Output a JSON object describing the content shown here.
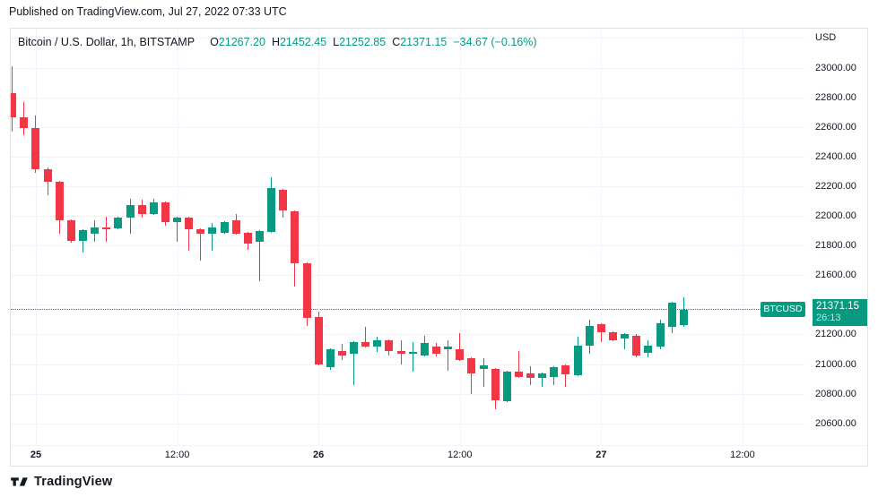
{
  "header": {
    "published": "Published on TradingView.com, Jul 27, 2022 07:33 UTC"
  },
  "legend": {
    "title": "Bitcoin / U.S. Dollar, 1h, BITSTAMP",
    "o_label": "O",
    "o": "21267.20",
    "h_label": "H",
    "h": "21452.45",
    "l_label": "L",
    "l": "21252.85",
    "c_label": "C",
    "c": "21371.15",
    "change": "−34.67 (−0.16%)"
  },
  "price_axis": {
    "currency": "USD",
    "grid_top_price": 23200,
    "labels": [
      {
        "text": "23000.00",
        "price": 23000
      },
      {
        "text": "22800.00",
        "price": 22800
      },
      {
        "text": "22600.00",
        "price": 22600
      },
      {
        "text": "22400.00",
        "price": 22400
      },
      {
        "text": "22200.00",
        "price": 22200
      },
      {
        "text": "22000.00",
        "price": 22000
      },
      {
        "text": "21800.00",
        "price": 21800
      },
      {
        "text": "21600.00",
        "price": 21600
      },
      {
        "text": "21400.00",
        "price": 21400
      },
      {
        "text": "21200.00",
        "price": 21200
      },
      {
        "text": "21000.00",
        "price": 21000
      },
      {
        "text": "20800.00",
        "price": 20800
      },
      {
        "text": "20600.00",
        "price": 20600
      }
    ]
  },
  "time_axis": {
    "ticks": [
      {
        "label": "25",
        "hour_index": 2,
        "bold": true
      },
      {
        "label": "12:00",
        "hour_index": 14,
        "bold": false
      },
      {
        "label": "26",
        "hour_index": 26,
        "bold": true
      },
      {
        "label": "12:00",
        "hour_index": 38,
        "bold": false
      },
      {
        "label": "27",
        "hour_index": 50,
        "bold": true
      },
      {
        "label": "12:00",
        "hour_index": 62,
        "bold": false
      }
    ]
  },
  "price_line": {
    "symbol": "BTCUSD",
    "price": "21371.15",
    "countdown": "26:13",
    "value": 21371.15
  },
  "footer": {
    "brand": "TradingView"
  },
  "colors": {
    "up": "#089981",
    "down": "#F23645",
    "text": "#131722",
    "grid": "#F1F3FA",
    "border": "#E0E3EB",
    "badge": "#089981"
  },
  "chart_data": {
    "type": "candlestick",
    "title": "Bitcoin / U.S. Dollar, 1h, BITSTAMP",
    "symbol": "BTCUSD",
    "exchange": "BITSTAMP",
    "interval": "1h",
    "timezone": "UTC",
    "start_time": "2022-07-24 22:00",
    "ylabel": "USD",
    "ylim": [
      20450,
      23270
    ],
    "grid": true,
    "last_bar": {
      "o": 21267.2,
      "h": 21452.45,
      "l": 21252.85,
      "c": 21371.15
    },
    "candles_format": [
      "open",
      "high",
      "low",
      "close"
    ],
    "candles": [
      [
        22830,
        23010,
        22570,
        22667
      ],
      [
        22667,
        22770,
        22545,
        22594
      ],
      [
        22594,
        22680,
        22291,
        22315
      ],
      [
        22315,
        22330,
        22140,
        22230
      ],
      [
        22230,
        22240,
        21880,
        21970
      ],
      [
        21970,
        21980,
        21820,
        21836
      ],
      [
        21836,
        21915,
        21758,
        21909
      ],
      [
        21880,
        21970,
        21830,
        21925
      ],
      [
        21925,
        22000,
        21830,
        21918
      ],
      [
        21918,
        21994,
        21910,
        21988
      ],
      [
        21988,
        22120,
        21880,
        22073
      ],
      [
        22073,
        22110,
        21988,
        22018
      ],
      [
        22018,
        22120,
        22010,
        22091
      ],
      [
        22091,
        22097,
        21939,
        21958
      ],
      [
        21958,
        21994,
        21830,
        21988
      ],
      [
        21988,
        21994,
        21770,
        21915
      ],
      [
        21915,
        21921,
        21703,
        21885
      ],
      [
        21885,
        21952,
        21770,
        21927
      ],
      [
        21891,
        21964,
        21885,
        21958
      ],
      [
        21970,
        22018,
        21879,
        21885
      ],
      [
        21891,
        21897,
        21776,
        21818
      ],
      [
        21830,
        21909,
        21564,
        21903
      ],
      [
        21897,
        22261,
        21891,
        22188
      ],
      [
        22176,
        22182,
        21988,
        22042
      ],
      [
        22036,
        22042,
        21527,
        21685
      ],
      [
        21685,
        21691,
        21261,
        21315
      ],
      [
        21321,
        21358,
        20994,
        21000
      ],
      [
        20982,
        21109,
        20964,
        21103
      ],
      [
        21091,
        21139,
        21030,
        21061
      ],
      [
        21073,
        21158,
        20861,
        21152
      ],
      [
        21152,
        21255,
        21115,
        21121
      ],
      [
        21121,
        21188,
        21085,
        21164
      ],
      [
        21164,
        21170,
        21061,
        21091
      ],
      [
        21091,
        21164,
        21000,
        21073
      ],
      [
        21079,
        21152,
        20952,
        21085
      ],
      [
        21061,
        21194,
        21055,
        21146
      ],
      [
        21121,
        21146,
        21055,
        21073
      ],
      [
        21103,
        21164,
        20958,
        21121
      ],
      [
        21103,
        21212,
        21024,
        21030
      ],
      [
        21042,
        21048,
        20800,
        20939
      ],
      [
        20970,
        21042,
        20848,
        20994
      ],
      [
        20970,
        20976,
        20697,
        20758
      ],
      [
        20752,
        20958,
        20745,
        20952
      ],
      [
        20952,
        21091,
        20909,
        20915
      ],
      [
        20939,
        20988,
        20861,
        20909
      ],
      [
        20909,
        20945,
        20848,
        20939
      ],
      [
        20915,
        20988,
        20861,
        20982
      ],
      [
        20994,
        21000,
        20848,
        20933
      ],
      [
        20927,
        21188,
        20921,
        21127
      ],
      [
        21127,
        21303,
        21073,
        21261
      ],
      [
        21273,
        21279,
        21152,
        21218
      ],
      [
        21218,
        21224,
        21158,
        21164
      ],
      [
        21176,
        21212,
        21103,
        21206
      ],
      [
        21194,
        21206,
        21048,
        21061
      ],
      [
        21079,
        21164,
        21048,
        21127
      ],
      [
        21121,
        21303,
        21103,
        21279
      ],
      [
        21255,
        21424,
        21212,
        21418
      ],
      [
        21267.2,
        21452.45,
        21252.85,
        21371.15
      ]
    ]
  }
}
